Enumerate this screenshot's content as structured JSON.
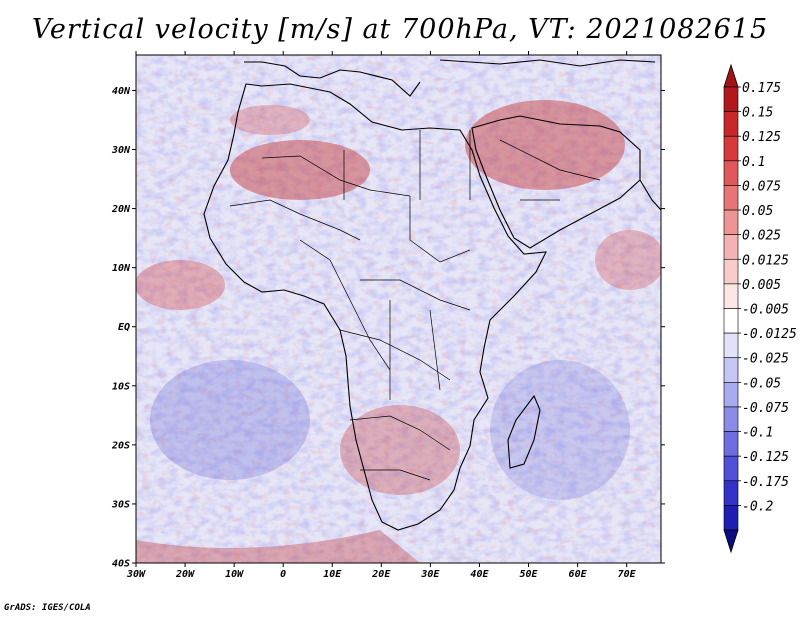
{
  "title": "Vertical velocity [m/s] at 700hPa, VT: 2021082615",
  "credit": "GrADS: IGES/COLA",
  "map": {
    "projection": "lat-lon",
    "lon_range": [
      -30,
      77
    ],
    "lat_range": [
      -40,
      46
    ],
    "lon_ticks": [
      {
        "value": -30,
        "label": "30W"
      },
      {
        "value": -20,
        "label": "20W"
      },
      {
        "value": -10,
        "label": "10W"
      },
      {
        "value": 0,
        "label": "0"
      },
      {
        "value": 10,
        "label": "10E"
      },
      {
        "value": 20,
        "label": "20E"
      },
      {
        "value": 30,
        "label": "30E"
      },
      {
        "value": 40,
        "label": "40E"
      },
      {
        "value": 50,
        "label": "50E"
      },
      {
        "value": 60,
        "label": "60E"
      },
      {
        "value": 70,
        "label": "70E"
      }
    ],
    "lat_ticks": [
      {
        "value": 40,
        "label": "40N"
      },
      {
        "value": 30,
        "label": "30N"
      },
      {
        "value": 20,
        "label": "20N"
      },
      {
        "value": 10,
        "label": "10N"
      },
      {
        "value": 0,
        "label": "EQ"
      },
      {
        "value": -10,
        "label": "10S"
      },
      {
        "value": -20,
        "label": "20S"
      },
      {
        "value": -30,
        "label": "30S"
      },
      {
        "value": -40,
        "label": "40S"
      }
    ]
  },
  "colorbar": {
    "labels": [
      "0.175",
      "0.15",
      "0.125",
      "0.1",
      "0.075",
      "0.05",
      "0.025",
      "0.0125",
      "0.005",
      "-0.005",
      "-0.0125",
      "-0.025",
      "-0.05",
      "-0.075",
      "-0.1",
      "-0.125",
      "-0.175",
      "-0.2"
    ],
    "colors": [
      "#b2181b",
      "#c8282c",
      "#d73a3c",
      "#e05859",
      "#e87676",
      "#ee9494",
      "#f4b2b2",
      "#f8cccc",
      "#fce6e6",
      "#ffffff",
      "#e2e2fb",
      "#c6c6f5",
      "#aaaaef",
      "#8c8ce8",
      "#6e6ee0",
      "#5050d8",
      "#3232c8",
      "#1e1eb0",
      "#12128f"
    ],
    "top_color": "#a01418",
    "bottom_color": "#0c0c80"
  }
}
